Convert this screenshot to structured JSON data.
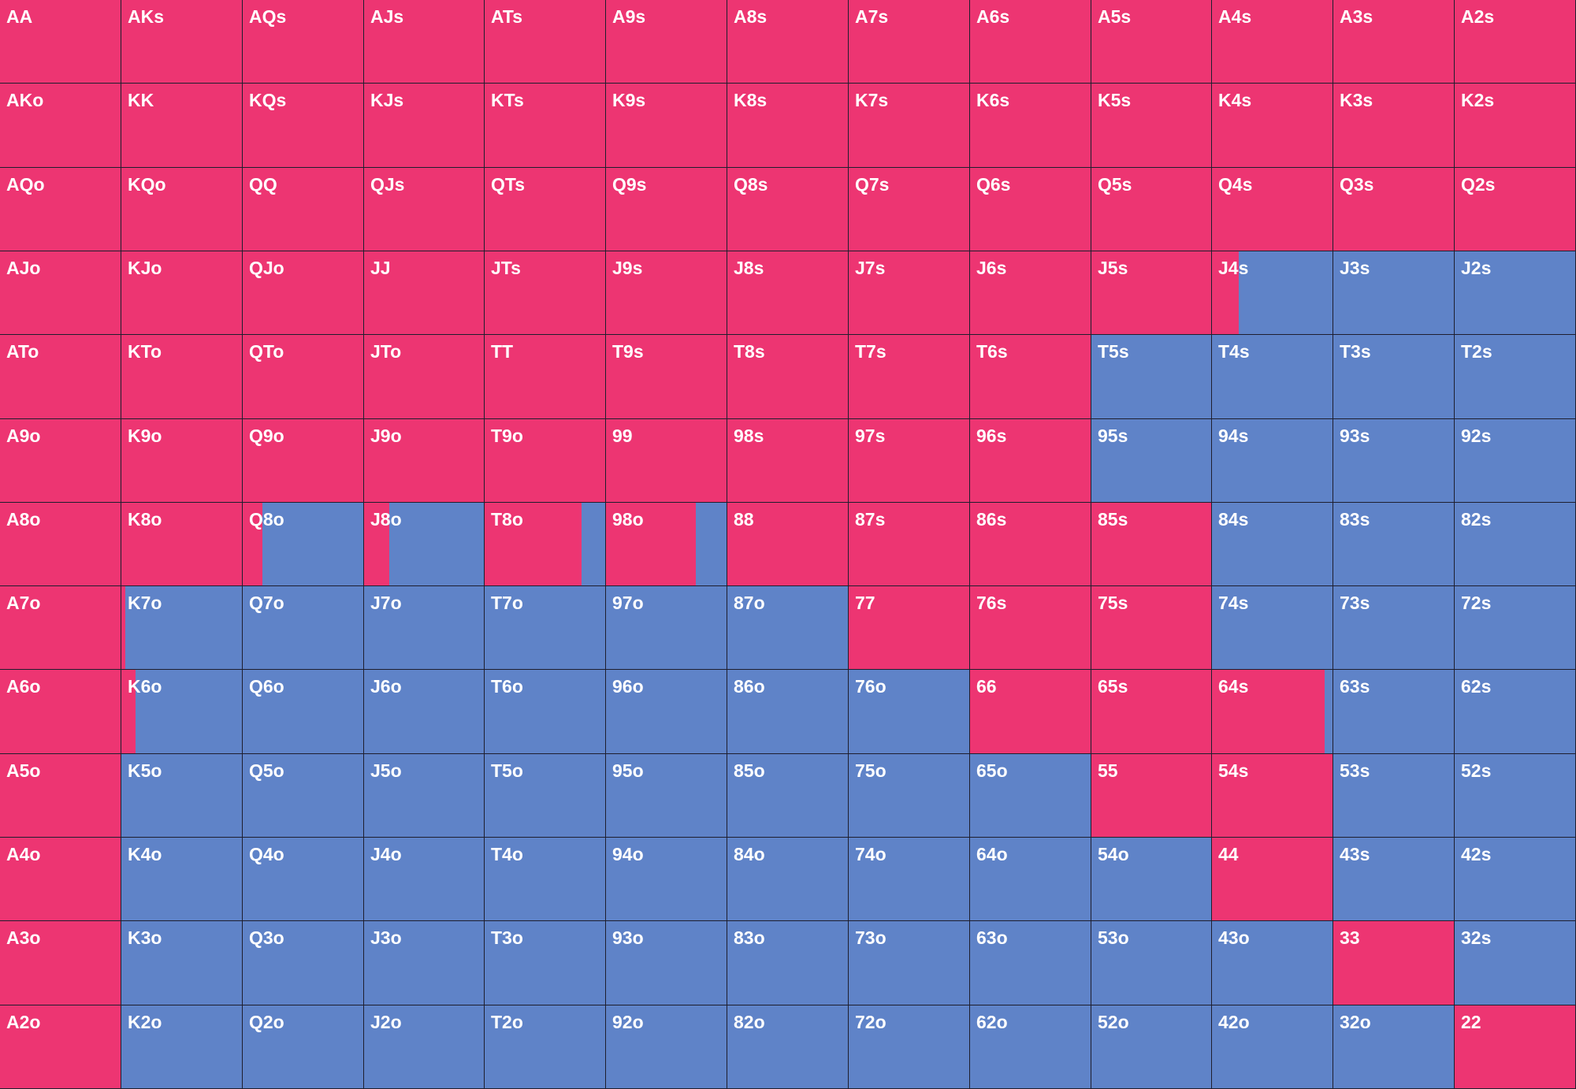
{
  "grid": {
    "rows": [
      [
        {
          "hand": "AA",
          "raise": 100
        },
        {
          "hand": "AKs",
          "raise": 100
        },
        {
          "hand": "AQs",
          "raise": 100
        },
        {
          "hand": "AJs",
          "raise": 100
        },
        {
          "hand": "ATs",
          "raise": 100
        },
        {
          "hand": "A9s",
          "raise": 100
        },
        {
          "hand": "A8s",
          "raise": 100
        },
        {
          "hand": "A7s",
          "raise": 100
        },
        {
          "hand": "A6s",
          "raise": 100
        },
        {
          "hand": "A5s",
          "raise": 100
        },
        {
          "hand": "A4s",
          "raise": 100
        },
        {
          "hand": "A3s",
          "raise": 100
        },
        {
          "hand": "A2s",
          "raise": 100
        }
      ],
      [
        {
          "hand": "AKo",
          "raise": 100
        },
        {
          "hand": "KK",
          "raise": 100
        },
        {
          "hand": "KQs",
          "raise": 100
        },
        {
          "hand": "KJs",
          "raise": 100
        },
        {
          "hand": "KTs",
          "raise": 100
        },
        {
          "hand": "K9s",
          "raise": 100
        },
        {
          "hand": "K8s",
          "raise": 100
        },
        {
          "hand": "K7s",
          "raise": 100
        },
        {
          "hand": "K6s",
          "raise": 100
        },
        {
          "hand": "K5s",
          "raise": 100
        },
        {
          "hand": "K4s",
          "raise": 100
        },
        {
          "hand": "K3s",
          "raise": 100
        },
        {
          "hand": "K2s",
          "raise": 100
        }
      ],
      [
        {
          "hand": "AQo",
          "raise": 100
        },
        {
          "hand": "KQo",
          "raise": 100
        },
        {
          "hand": "QQ",
          "raise": 100
        },
        {
          "hand": "QJs",
          "raise": 100
        },
        {
          "hand": "QTs",
          "raise": 100
        },
        {
          "hand": "Q9s",
          "raise": 100
        },
        {
          "hand": "Q8s",
          "raise": 100
        },
        {
          "hand": "Q7s",
          "raise": 100
        },
        {
          "hand": "Q6s",
          "raise": 100
        },
        {
          "hand": "Q5s",
          "raise": 100
        },
        {
          "hand": "Q4s",
          "raise": 100
        },
        {
          "hand": "Q3s",
          "raise": 100
        },
        {
          "hand": "Q2s",
          "raise": 100
        }
      ],
      [
        {
          "hand": "AJo",
          "raise": 100
        },
        {
          "hand": "KJo",
          "raise": 100
        },
        {
          "hand": "QJo",
          "raise": 100
        },
        {
          "hand": "JJ",
          "raise": 100
        },
        {
          "hand": "JTs",
          "raise": 100
        },
        {
          "hand": "J9s",
          "raise": 100
        },
        {
          "hand": "J8s",
          "raise": 100
        },
        {
          "hand": "J7s",
          "raise": 100
        },
        {
          "hand": "J6s",
          "raise": 100
        },
        {
          "hand": "J5s",
          "raise": 100
        },
        {
          "hand": "J4s",
          "raise": 22
        },
        {
          "hand": "J3s",
          "raise": 0
        },
        {
          "hand": "J2s",
          "raise": 0
        }
      ],
      [
        {
          "hand": "ATo",
          "raise": 100
        },
        {
          "hand": "KTo",
          "raise": 100
        },
        {
          "hand": "QTo",
          "raise": 100
        },
        {
          "hand": "JTo",
          "raise": 100
        },
        {
          "hand": "TT",
          "raise": 100
        },
        {
          "hand": "T9s",
          "raise": 100
        },
        {
          "hand": "T8s",
          "raise": 100
        },
        {
          "hand": "T7s",
          "raise": 100
        },
        {
          "hand": "T6s",
          "raise": 100
        },
        {
          "hand": "T5s",
          "raise": 0
        },
        {
          "hand": "T4s",
          "raise": 0
        },
        {
          "hand": "T3s",
          "raise": 0
        },
        {
          "hand": "T2s",
          "raise": 0
        }
      ],
      [
        {
          "hand": "A9o",
          "raise": 100
        },
        {
          "hand": "K9o",
          "raise": 100
        },
        {
          "hand": "Q9o",
          "raise": 100
        },
        {
          "hand": "J9o",
          "raise": 100
        },
        {
          "hand": "T9o",
          "raise": 100
        },
        {
          "hand": "99",
          "raise": 100
        },
        {
          "hand": "98s",
          "raise": 100
        },
        {
          "hand": "97s",
          "raise": 100
        },
        {
          "hand": "96s",
          "raise": 100
        },
        {
          "hand": "95s",
          "raise": 0
        },
        {
          "hand": "94s",
          "raise": 0
        },
        {
          "hand": "93s",
          "raise": 0
        },
        {
          "hand": "92s",
          "raise": 0
        }
      ],
      [
        {
          "hand": "A8o",
          "raise": 100
        },
        {
          "hand": "K8o",
          "raise": 100
        },
        {
          "hand": "Q8o",
          "raise": 16
        },
        {
          "hand": "J8o",
          "raise": 21
        },
        {
          "hand": "T8o",
          "raise": 80
        },
        {
          "hand": "98o",
          "raise": 74
        },
        {
          "hand": "88",
          "raise": 100
        },
        {
          "hand": "87s",
          "raise": 100
        },
        {
          "hand": "86s",
          "raise": 100
        },
        {
          "hand": "85s",
          "raise": 100
        },
        {
          "hand": "84s",
          "raise": 0
        },
        {
          "hand": "83s",
          "raise": 0
        },
        {
          "hand": "82s",
          "raise": 0
        }
      ],
      [
        {
          "hand": "A7o",
          "raise": 100
        },
        {
          "hand": "K7o",
          "raise": 3
        },
        {
          "hand": "Q7o",
          "raise": 0
        },
        {
          "hand": "J7o",
          "raise": 0
        },
        {
          "hand": "T7o",
          "raise": 0
        },
        {
          "hand": "97o",
          "raise": 0
        },
        {
          "hand": "87o",
          "raise": 0
        },
        {
          "hand": "77",
          "raise": 100
        },
        {
          "hand": "76s",
          "raise": 100
        },
        {
          "hand": "75s",
          "raise": 100
        },
        {
          "hand": "74s",
          "raise": 0
        },
        {
          "hand": "73s",
          "raise": 0
        },
        {
          "hand": "72s",
          "raise": 0
        }
      ],
      [
        {
          "hand": "A6o",
          "raise": 100
        },
        {
          "hand": "K6o",
          "raise": 12
        },
        {
          "hand": "Q6o",
          "raise": 0
        },
        {
          "hand": "J6o",
          "raise": 0
        },
        {
          "hand": "T6o",
          "raise": 0
        },
        {
          "hand": "96o",
          "raise": 0
        },
        {
          "hand": "86o",
          "raise": 0
        },
        {
          "hand": "76o",
          "raise": 0
        },
        {
          "hand": "66",
          "raise": 100
        },
        {
          "hand": "65s",
          "raise": 100
        },
        {
          "hand": "64s",
          "raise": 93
        },
        {
          "hand": "63s",
          "raise": 0
        },
        {
          "hand": "62s",
          "raise": 0
        }
      ],
      [
        {
          "hand": "A5o",
          "raise": 100
        },
        {
          "hand": "K5o",
          "raise": 0
        },
        {
          "hand": "Q5o",
          "raise": 0
        },
        {
          "hand": "J5o",
          "raise": 0
        },
        {
          "hand": "T5o",
          "raise": 0
        },
        {
          "hand": "95o",
          "raise": 0
        },
        {
          "hand": "85o",
          "raise": 0
        },
        {
          "hand": "75o",
          "raise": 0
        },
        {
          "hand": "65o",
          "raise": 0
        },
        {
          "hand": "55",
          "raise": 100
        },
        {
          "hand": "54s",
          "raise": 100
        },
        {
          "hand": "53s",
          "raise": 0
        },
        {
          "hand": "52s",
          "raise": 0
        }
      ],
      [
        {
          "hand": "A4o",
          "raise": 100
        },
        {
          "hand": "K4o",
          "raise": 0
        },
        {
          "hand": "Q4o",
          "raise": 0
        },
        {
          "hand": "J4o",
          "raise": 0
        },
        {
          "hand": "T4o",
          "raise": 0
        },
        {
          "hand": "94o",
          "raise": 0
        },
        {
          "hand": "84o",
          "raise": 0
        },
        {
          "hand": "74o",
          "raise": 0
        },
        {
          "hand": "64o",
          "raise": 0
        },
        {
          "hand": "54o",
          "raise": 0
        },
        {
          "hand": "44",
          "raise": 100
        },
        {
          "hand": "43s",
          "raise": 0
        },
        {
          "hand": "42s",
          "raise": 0
        }
      ],
      [
        {
          "hand": "A3o",
          "raise": 100
        },
        {
          "hand": "K3o",
          "raise": 0
        },
        {
          "hand": "Q3o",
          "raise": 0
        },
        {
          "hand": "J3o",
          "raise": 0
        },
        {
          "hand": "T3o",
          "raise": 0
        },
        {
          "hand": "93o",
          "raise": 0
        },
        {
          "hand": "83o",
          "raise": 0
        },
        {
          "hand": "73o",
          "raise": 0
        },
        {
          "hand": "63o",
          "raise": 0
        },
        {
          "hand": "53o",
          "raise": 0
        },
        {
          "hand": "43o",
          "raise": 0
        },
        {
          "hand": "33",
          "raise": 100
        },
        {
          "hand": "32s",
          "raise": 0
        }
      ],
      [
        {
          "hand": "A2o",
          "raise": 100
        },
        {
          "hand": "K2o",
          "raise": 0
        },
        {
          "hand": "Q2o",
          "raise": 0
        },
        {
          "hand": "J2o",
          "raise": 0
        },
        {
          "hand": "T2o",
          "raise": 0
        },
        {
          "hand": "92o",
          "raise": 0
        },
        {
          "hand": "82o",
          "raise": 0
        },
        {
          "hand": "72o",
          "raise": 0
        },
        {
          "hand": "62o",
          "raise": 0
        },
        {
          "hand": "52o",
          "raise": 0
        },
        {
          "hand": "42o",
          "raise": 0
        },
        {
          "hand": "32o",
          "raise": 0
        },
        {
          "hand": "22",
          "raise": 100
        }
      ]
    ]
  }
}
